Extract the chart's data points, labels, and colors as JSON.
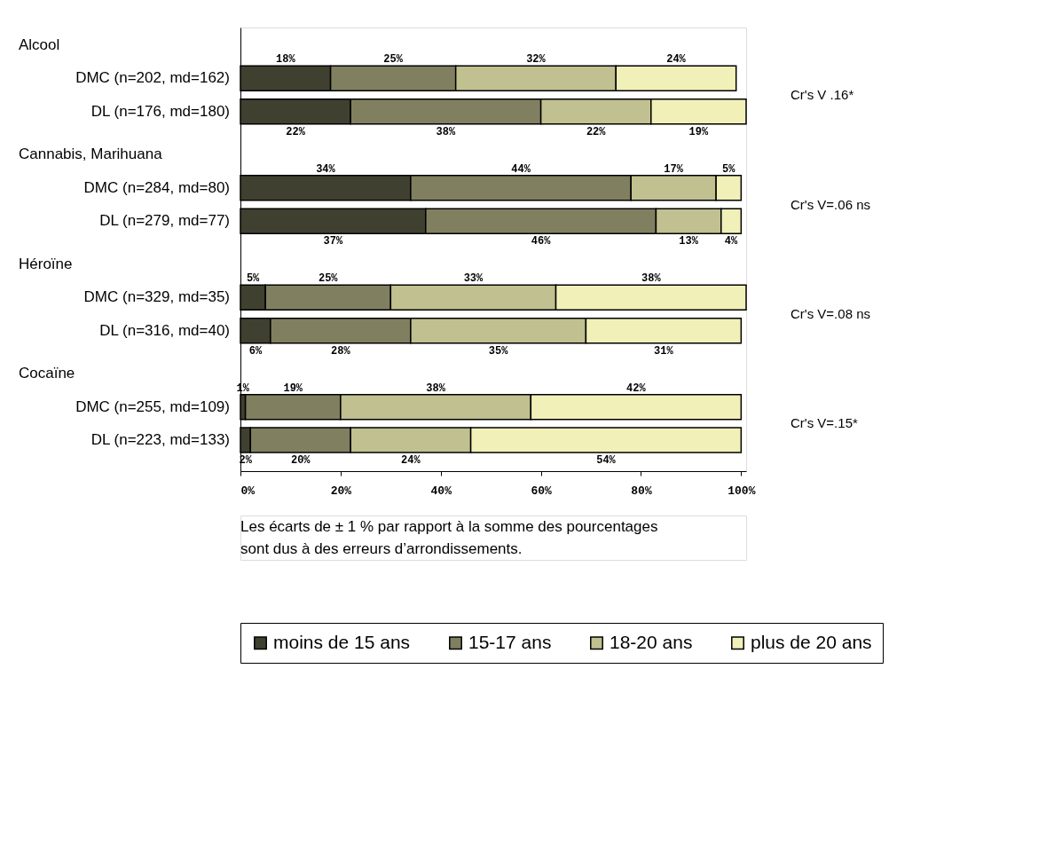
{
  "chart_data": {
    "type": "bar",
    "orientation": "horizontal",
    "stacked": true,
    "categories": [
      "DMC (n=202, md=162)",
      "DL (n=176, md=180)",
      "DMC (n=284, md=80)",
      "DL (n=279, md=77)",
      "DMC (n=329, md=35)",
      "DL (n=316, md=40)",
      "DMC (n=255, md=109)",
      "DL (n=223, md=133)"
    ],
    "series": [
      {
        "name": "moins de 15 ans",
        "color": "#404030",
        "values": [
          18,
          22,
          34,
          37,
          5,
          6,
          1,
          2
        ],
        "value_labels": [
          "18%",
          "22%",
          "34%",
          "37%",
          "5%",
          "6%",
          "1%",
          "2%"
        ]
      },
      {
        "name": "15-17 ans",
        "color": "#808060",
        "values": [
          25,
          38,
          44,
          46,
          25,
          28,
          19,
          20
        ],
        "value_labels": [
          "25%",
          "38%",
          "44%",
          "46%",
          "25%",
          "28%",
          "19%",
          "20%"
        ]
      },
      {
        "name": "18-20 ans",
        "color": "#c0c090",
        "values": [
          32,
          22,
          17,
          13,
          33,
          35,
          38,
          24
        ],
        "value_labels": [
          "32%",
          "22%",
          "17%",
          "13%",
          "33%",
          "35%",
          "38%",
          "24%"
        ]
      },
      {
        "name": "plus de 20 ans",
        "color": "#f0f0b8",
        "values": [
          24,
          19,
          5,
          4,
          38,
          31,
          42,
          54
        ],
        "value_labels": [
          "24%",
          "19%",
          "5%",
          "4%",
          "38%",
          "31%",
          "42%",
          "54%"
        ]
      }
    ],
    "xlim": [
      0,
      101
    ],
    "xticks": [
      {
        "value": 0,
        "label": "0%"
      },
      {
        "value": 20,
        "label": "20%"
      },
      {
        "value": 40,
        "label": "40%"
      },
      {
        "value": 60,
        "label": "60%"
      },
      {
        "value": 80,
        "label": "80%"
      },
      {
        "value": 100,
        "label": "100%"
      }
    ],
    "grid": false,
    "legend": "bottom",
    "annotations": [
      "Alcool",
      "Cannabis, Marihuana",
      "Héroïne",
      "Cocaïne",
      "Cr's V .16*",
      "Cr's V=.06 ns",
      "Cr's V=.08 ns",
      "Cr's V=.15*",
      "Les écarts de ± 1 % par rapport à la somme des pourcentages",
      "sont dus à des erreurs d’arrondissements."
    ]
  }
}
